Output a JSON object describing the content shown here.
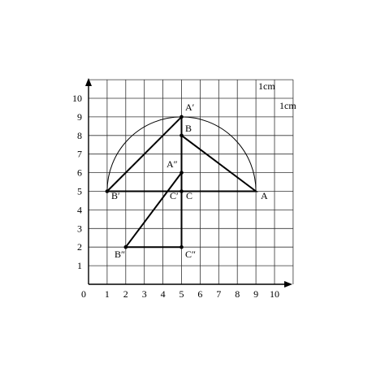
{
  "axes": {
    "x_ticks": [
      "0",
      "1",
      "2",
      "3",
      "4",
      "5",
      "6",
      "7",
      "8",
      "9",
      "10"
    ],
    "y_ticks": [
      "1",
      "2",
      "3",
      "4",
      "5",
      "6",
      "7",
      "8",
      "9",
      "10"
    ],
    "xlim": [
      0,
      10
    ],
    "ylim": [
      0,
      10
    ],
    "grid": true
  },
  "unit_labels": {
    "horizontal": "1cm",
    "vertical": "1cm"
  },
  "points": {
    "A": {
      "label": "A",
      "x": 9,
      "y": 5
    },
    "B": {
      "label": "B",
      "x": 5,
      "y": 8
    },
    "C": {
      "label": "C",
      "x": 5,
      "y": 5
    },
    "A1": {
      "label": "A′",
      "x": 5,
      "y": 9
    },
    "B1": {
      "label": "B′",
      "x": 1,
      "y": 5
    },
    "C1": {
      "label": "C′",
      "x": 5,
      "y": 5
    },
    "A2": {
      "label": "A″",
      "x": 5,
      "y": 6
    },
    "B2": {
      "label": "B″",
      "x": 2,
      "y": 2
    },
    "C2": {
      "label": "C″",
      "x": 5,
      "y": 2
    }
  },
  "arc": {
    "center_x": 5,
    "center_y": 5,
    "radius": 4,
    "from_deg": 0,
    "to_deg": 180
  }
}
